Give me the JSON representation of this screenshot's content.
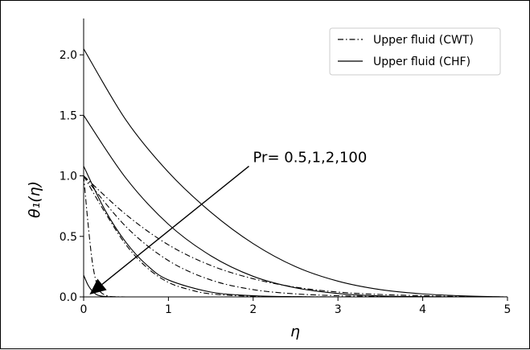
{
  "chart_data": {
    "type": "line",
    "xlabel": "η",
    "ylabel": "θ₁(η)",
    "xlim": [
      0,
      5
    ],
    "ylim": [
      0,
      2.3
    ],
    "xticks": [
      "0",
      "1",
      "2",
      "3",
      "4",
      "5"
    ],
    "yticks": [
      "0.0",
      "0.5",
      "1.0",
      "1.5",
      "2.0"
    ],
    "grid": false,
    "legend_position": "top-right",
    "legend": [
      {
        "label": "Upper fluid (CWT)",
        "style": "dashdot"
      },
      {
        "label": "Upper fluid (CHF)",
        "style": "solid"
      }
    ],
    "annotation": {
      "text": "Pr= 0.5,1,2,100",
      "arrow_from": [
        1.95,
        1.08
      ],
      "arrow_to": [
        0.07,
        0.02
      ]
    },
    "series": [
      {
        "style": "dashdot",
        "x": [
          0,
          0.5,
          1,
          1.5,
          2,
          2.5,
          3,
          3.5,
          4,
          4.5,
          5
        ],
        "y": [
          1.0,
          0.68,
          0.43,
          0.26,
          0.15,
          0.08,
          0.04,
          0.02,
          0.01,
          0.003,
          0
        ]
      },
      {
        "style": "dashdot",
        "x": [
          0,
          0.5,
          1,
          1.5,
          2,
          2.5,
          3,
          3.5,
          4
        ],
        "y": [
          1.0,
          0.58,
          0.3,
          0.14,
          0.06,
          0.025,
          0.01,
          0.003,
          0
        ]
      },
      {
        "style": "dashdot",
        "x": [
          0,
          0.25,
          0.5,
          0.75,
          1,
          1.25,
          1.5,
          2,
          2.5,
          3
        ],
        "y": [
          1.0,
          0.7,
          0.43,
          0.24,
          0.12,
          0.06,
          0.025,
          0.005,
          0.001,
          0
        ]
      },
      {
        "style": "dashdot",
        "x": [
          0,
          0.05,
          0.1,
          0.15,
          0.2,
          0.3,
          0.4,
          0.5
        ],
        "y": [
          1.0,
          0.62,
          0.3,
          0.12,
          0.04,
          0.005,
          0.001,
          0
        ]
      },
      {
        "style": "solid",
        "x": [
          0,
          0.5,
          1,
          1.5,
          2,
          2.5,
          3,
          3.5,
          4,
          4.5,
          5
        ],
        "y": [
          2.05,
          1.46,
          1.03,
          0.7,
          0.44,
          0.25,
          0.13,
          0.06,
          0.025,
          0.008,
          0
        ]
      },
      {
        "style": "solid",
        "x": [
          0,
          0.5,
          1,
          1.5,
          2,
          2.5,
          3,
          3.5,
          4,
          4.5
        ],
        "y": [
          1.5,
          0.98,
          0.6,
          0.34,
          0.17,
          0.075,
          0.028,
          0.008,
          0.002,
          0
        ]
      },
      {
        "style": "solid",
        "x": [
          0,
          0.25,
          0.5,
          0.75,
          1,
          1.5,
          2,
          2.5,
          3
        ],
        "y": [
          1.08,
          0.72,
          0.45,
          0.26,
          0.14,
          0.04,
          0.01,
          0.002,
          0
        ]
      },
      {
        "style": "solid",
        "x": [
          0,
          0.05,
          0.1,
          0.15,
          0.2,
          0.3,
          0.4
        ],
        "y": [
          0.18,
          0.1,
          0.05,
          0.02,
          0.008,
          0.001,
          0
        ]
      }
    ]
  }
}
